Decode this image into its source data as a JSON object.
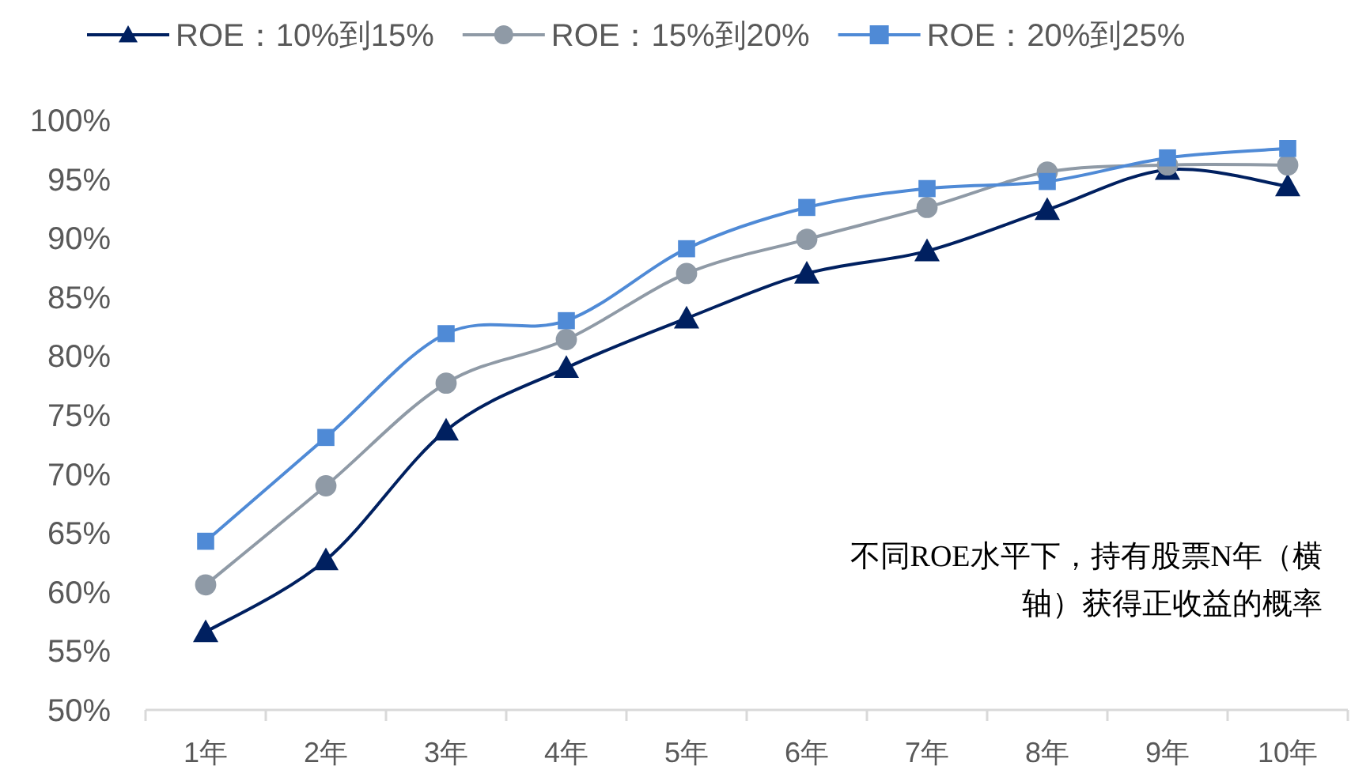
{
  "chart_data": {
    "type": "line",
    "categories": [
      "1年",
      "2年",
      "3年",
      "4年",
      "5年",
      "6年",
      "7年",
      "8年",
      "9年",
      "10年"
    ],
    "series": [
      {
        "name": "ROE：10%到15%",
        "color": "#002060",
        "marker": "triangle",
        "values": [
          56.6,
          62.7,
          73.7,
          79.0,
          83.2,
          87.0,
          88.9,
          92.4,
          95.8,
          94.4
        ]
      },
      {
        "name": "ROE：15%到20%",
        "color": "#8f9aa6",
        "marker": "circle",
        "values": [
          60.6,
          69.0,
          77.7,
          81.4,
          87.0,
          89.9,
          92.6,
          95.6,
          96.2,
          96.2
        ]
      },
      {
        "name": "ROE：20%到25%",
        "color": "#4f8ad6",
        "marker": "square",
        "values": [
          64.3,
          73.1,
          81.9,
          83.0,
          89.1,
          92.6,
          94.2,
          94.8,
          96.8,
          97.6
        ]
      }
    ],
    "ylim": [
      50,
      100
    ],
    "yticks": [
      {
        "value": 50,
        "label": "50%"
      },
      {
        "value": 55,
        "label": "55%"
      },
      {
        "value": 60,
        "label": "60%"
      },
      {
        "value": 65,
        "label": "65%"
      },
      {
        "value": 70,
        "label": "70%"
      },
      {
        "value": 75,
        "label": "75%"
      },
      {
        "value": 80,
        "label": "80%"
      },
      {
        "value": 85,
        "label": "85%"
      },
      {
        "value": 90,
        "label": "90%"
      },
      {
        "value": 95,
        "label": "95%"
      },
      {
        "value": 100,
        "label": "100%"
      }
    ],
    "grid": false,
    "legend": "top",
    "annotations": [
      "不同ROE水平下，持有股票N年（横轴）获得正收益的概率"
    ]
  }
}
